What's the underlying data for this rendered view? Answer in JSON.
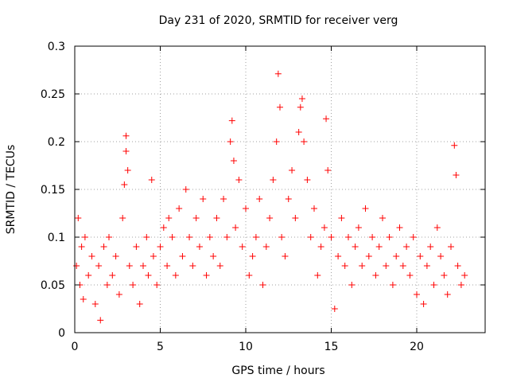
{
  "chart_data": {
    "type": "scatter",
    "title": "Day 231 of 2020, SRMTID for receiver verg",
    "xlabel": "GPS time / hours",
    "ylabel": "SRMTID / TECUs",
    "xlim": [
      0,
      24
    ],
    "ylim": [
      0,
      0.3
    ],
    "xticks": [
      0,
      5,
      10,
      15,
      20
    ],
    "yticks": [
      0,
      0.05,
      0.1,
      0.15,
      0.2,
      0.25,
      0.3
    ],
    "xtick_labels": [
      "0",
      "5",
      "10",
      "15",
      "20"
    ],
    "ytick_labels": [
      "0",
      "0.05",
      "0.1",
      "0.15",
      "0.2",
      "0.25",
      "0.3"
    ],
    "grid": true,
    "marker": "+",
    "marker_color": "#ff0000",
    "series": [
      {
        "name": "SRMTID",
        "x": [
          0.1,
          0.2,
          0.3,
          0.4,
          0.5,
          0.6,
          0.8,
          1.0,
          1.2,
          1.4,
          1.5,
          1.7,
          1.9,
          2.0,
          2.2,
          2.4,
          2.6,
          2.8,
          2.9,
          3.0,
          3.0,
          3.1,
          3.2,
          3.4,
          3.6,
          3.8,
          4.0,
          4.2,
          4.3,
          4.5,
          4.6,
          4.8,
          5.0,
          5.2,
          5.4,
          5.5,
          5.7,
          5.9,
          6.1,
          6.3,
          6.5,
          6.7,
          6.9,
          7.1,
          7.3,
          7.5,
          7.7,
          7.9,
          8.1,
          8.3,
          8.5,
          8.7,
          8.9,
          9.1,
          9.2,
          9.3,
          9.4,
          9.6,
          9.8,
          10.0,
          10.2,
          10.4,
          10.6,
          10.8,
          11.0,
          11.2,
          11.4,
          11.6,
          11.8,
          11.9,
          12.0,
          12.1,
          12.3,
          12.5,
          12.7,
          12.9,
          13.1,
          13.2,
          13.3,
          13.4,
          13.6,
          13.8,
          14.0,
          14.2,
          14.4,
          14.6,
          14.7,
          14.8,
          15.0,
          15.2,
          15.4,
          15.6,
          15.8,
          16.0,
          16.2,
          16.4,
          16.6,
          16.8,
          17.0,
          17.2,
          17.4,
          17.6,
          17.8,
          18.0,
          18.2,
          18.4,
          18.6,
          18.8,
          19.0,
          19.2,
          19.4,
          19.6,
          19.8,
          20.0,
          20.2,
          20.4,
          20.6,
          20.8,
          21.0,
          21.2,
          21.4,
          21.6,
          21.8,
          22.0,
          22.2,
          22.3,
          22.4,
          22.6,
          22.8
        ],
        "y": [
          0.07,
          0.12,
          0.05,
          0.09,
          0.035,
          0.1,
          0.06,
          0.08,
          0.03,
          0.07,
          0.013,
          0.09,
          0.05,
          0.1,
          0.06,
          0.08,
          0.04,
          0.12,
          0.155,
          0.19,
          0.206,
          0.17,
          0.07,
          0.05,
          0.09,
          0.03,
          0.07,
          0.1,
          0.06,
          0.16,
          0.08,
          0.05,
          0.09,
          0.11,
          0.07,
          0.12,
          0.1,
          0.06,
          0.13,
          0.08,
          0.15,
          0.1,
          0.07,
          0.12,
          0.09,
          0.14,
          0.06,
          0.1,
          0.08,
          0.12,
          0.07,
          0.14,
          0.1,
          0.2,
          0.222,
          0.18,
          0.11,
          0.16,
          0.09,
          0.13,
          0.06,
          0.08,
          0.1,
          0.14,
          0.05,
          0.09,
          0.12,
          0.16,
          0.2,
          0.271,
          0.236,
          0.1,
          0.08,
          0.14,
          0.17,
          0.12,
          0.21,
          0.236,
          0.245,
          0.2,
          0.16,
          0.1,
          0.13,
          0.06,
          0.09,
          0.11,
          0.224,
          0.17,
          0.1,
          0.025,
          0.08,
          0.12,
          0.07,
          0.1,
          0.05,
          0.09,
          0.11,
          0.07,
          0.13,
          0.08,
          0.1,
          0.06,
          0.09,
          0.12,
          0.07,
          0.1,
          0.05,
          0.08,
          0.11,
          0.07,
          0.09,
          0.06,
          0.1,
          0.04,
          0.08,
          0.03,
          0.07,
          0.09,
          0.05,
          0.11,
          0.08,
          0.06,
          0.04,
          0.09,
          0.196,
          0.165,
          0.07,
          0.05,
          0.06
        ]
      }
    ]
  }
}
